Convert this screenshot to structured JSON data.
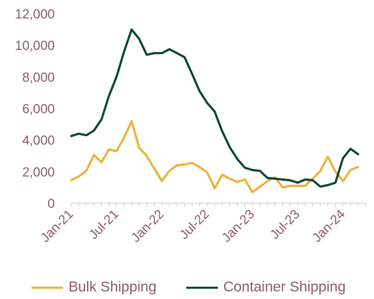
{
  "chart_data": {
    "type": "line",
    "title": "",
    "xlabel": "",
    "ylabel": "",
    "ylim": [
      0,
      12000
    ],
    "yticks": [
      "0",
      "2,000",
      "4,000",
      "6,000",
      "8,000",
      "10,000",
      "12,000"
    ],
    "ytick_values": [
      0,
      2000,
      4000,
      6000,
      8000,
      10000,
      12000
    ],
    "xticks": [
      "Jan-21",
      "Jul-21",
      "Jan-22",
      "Jul-22",
      "Jan-23",
      "Jul-23",
      "Jan-24"
    ],
    "xtick_dates": [
      "2021-01",
      "2021-07",
      "2022-01",
      "2022-07",
      "2023-01",
      "2023-07",
      "2024-01"
    ],
    "grid": "horizontal",
    "legend_position": "bottom",
    "x": [
      "2021-01",
      "2021-02",
      "2021-03",
      "2021-04",
      "2021-05",
      "2021-06",
      "2021-07",
      "2021-08",
      "2021-09",
      "2021-10",
      "2021-11",
      "2021-12",
      "2022-01",
      "2022-02",
      "2022-03",
      "2022-04",
      "2022-05",
      "2022-06",
      "2022-07",
      "2022-08",
      "2022-09",
      "2022-10",
      "2022-11",
      "2022-12",
      "2023-01",
      "2023-02",
      "2023-03",
      "2023-04",
      "2023-05",
      "2023-06",
      "2023-07",
      "2023-08",
      "2023-09",
      "2023-10",
      "2023-11",
      "2023-12",
      "2024-01",
      "2024-02",
      "2024-03",
      "2024-04"
    ],
    "series": [
      {
        "name": "Bulk Shipping",
        "color": "#e8b33a",
        "values": [
          1450,
          1700,
          2050,
          3050,
          2600,
          3400,
          3300,
          4150,
          5200,
          3500,
          3000,
          2200,
          1400,
          2050,
          2400,
          2450,
          2550,
          2300,
          1950,
          950,
          1800,
          1550,
          1350,
          1500,
          700,
          1050,
          1400,
          1650,
          1000,
          1100,
          1100,
          1100,
          1550,
          2050,
          2950,
          2000,
          1400,
          2100,
          2300,
          null
        ]
      },
      {
        "name": "Container Shipping",
        "color": "#0d4437",
        "values": [
          4250,
          4400,
          4300,
          4600,
          5300,
          6800,
          8000,
          9600,
          11000,
          10400,
          9400,
          9500,
          9500,
          9750,
          9500,
          9250,
          8200,
          7100,
          6350,
          5800,
          4550,
          3550,
          2800,
          2250,
          2100,
          2050,
          1600,
          1550,
          1500,
          1450,
          1300,
          1500,
          1450,
          1050,
          1150,
          1300,
          2850,
          3450,
          3100,
          null
        ]
      }
    ]
  }
}
